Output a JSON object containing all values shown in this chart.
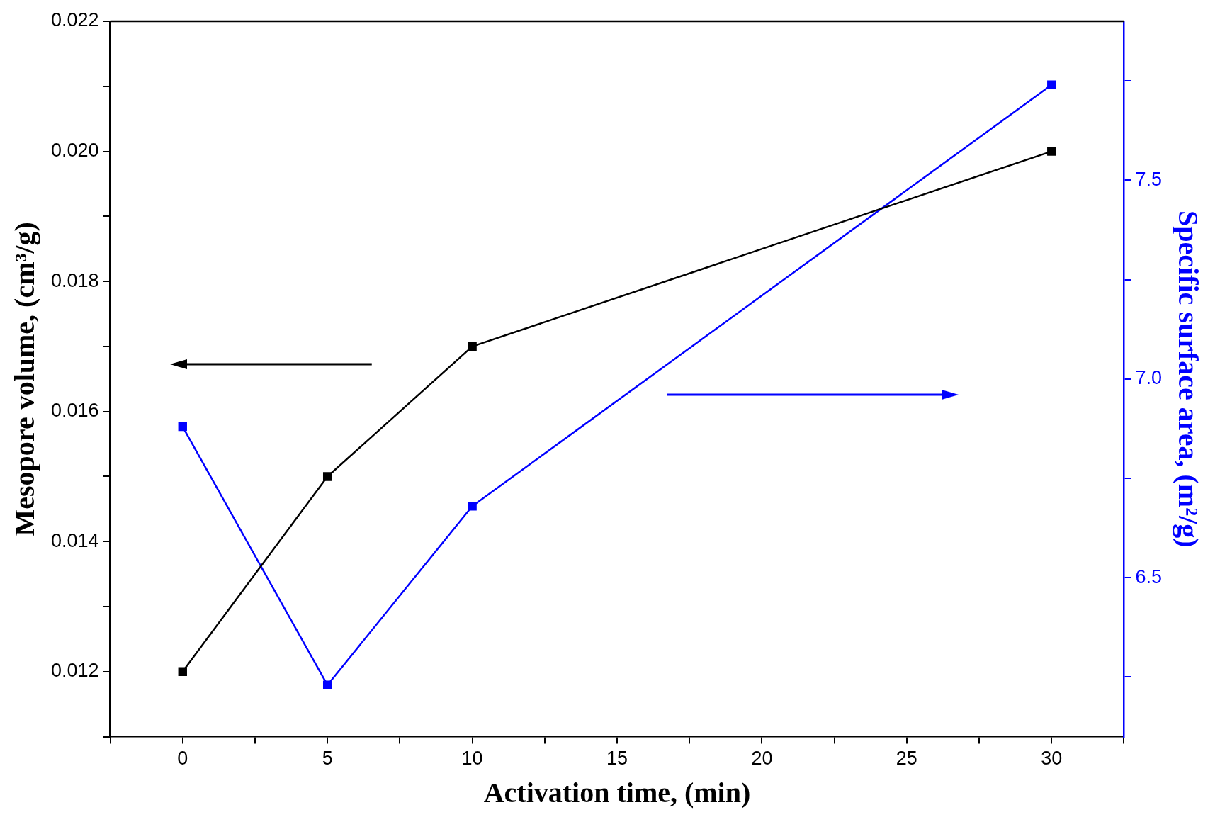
{
  "chart_data": {
    "type": "line",
    "xlabel": "Activation time, (min)",
    "ylabel": "Mesopore volume, (cm³/g)",
    "y2label": "Specific surface area, (m²/g)",
    "x": [
      0,
      5,
      10,
      30
    ],
    "series": [
      {
        "color": "#000000",
        "values": [
          0.012,
          0.015,
          0.017,
          0.02
        ]
      },
      {
        "color": "#0000ff",
        "axis": "y2",
        "values": [
          6.88,
          6.23,
          6.68,
          7.74
        ]
      }
    ],
    "xlim": [
      -2.5,
      32.5
    ],
    "xticks": [
      {
        "value": -2.5,
        "label": null
      },
      0,
      {
        "value": 2.5,
        "label": null
      },
      5,
      {
        "value": 7.5,
        "label": null
      },
      10,
      {
        "value": 12.5,
        "label": null
      },
      15,
      {
        "value": 17.5,
        "label": null
      },
      20,
      {
        "value": 22.5,
        "label": null
      },
      25,
      {
        "value": 27.5,
        "label": null
      },
      30,
      {
        "value": 32.5,
        "label": null
      }
    ],
    "ylim": [
      0.011,
      0.022
    ],
    "yticks": [
      {
        "value": 0.011,
        "label": null
      },
      0.012,
      {
        "value": 0.013,
        "label": null
      },
      0.014,
      {
        "value": 0.015,
        "label": null
      },
      0.016,
      {
        "value": 0.017,
        "label": null
      },
      0.018,
      {
        "value": 0.019,
        "label": null
      },
      {
        "value": 0.02,
        "label": "0.020"
      },
      {
        "value": 0.021,
        "label": null
      },
      0.022
    ],
    "y2lim": [
      6.1,
      7.9
    ],
    "y2ticks": [
      {
        "value": 6.25,
        "label": null
      },
      6.5,
      {
        "value": 6.75,
        "label": null
      },
      {
        "value": 7,
        "label": "7.0"
      },
      {
        "value": 7.25,
        "label": null
      },
      7.5,
      {
        "value": 7.75,
        "label": null
      }
    ],
    "grid": false,
    "legend": false,
    "marker": "square",
    "line_style": "solid"
  }
}
